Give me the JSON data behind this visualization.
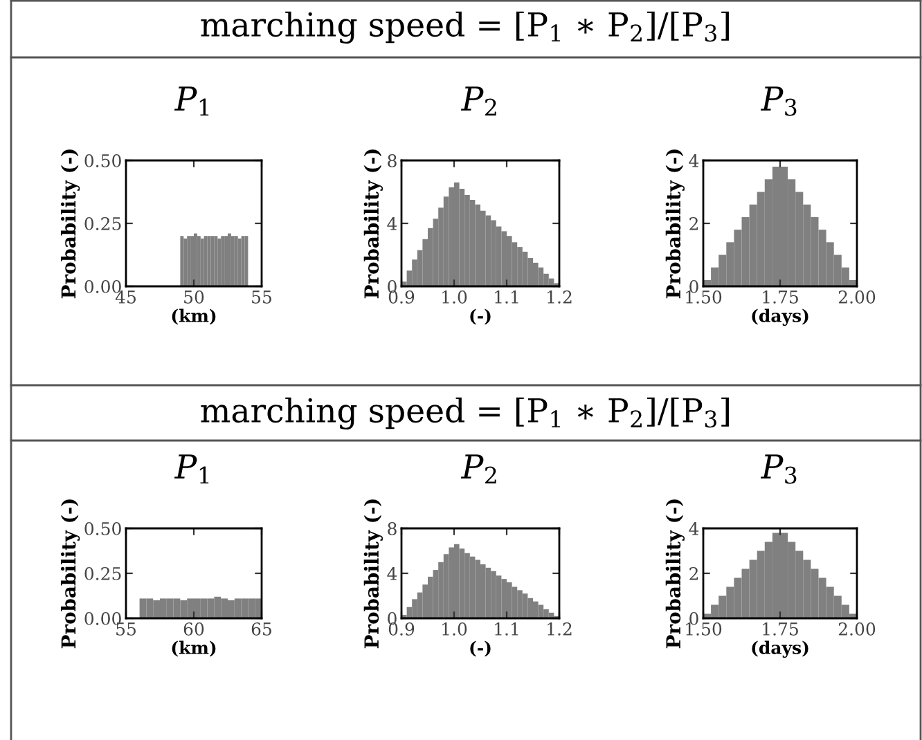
{
  "chart_data": [
    {
      "type": "histogram",
      "title": "P$_{1}$",
      "annotations": [
        "marching speed = [P$_{1}$ ∗ P$_{2}$]/[P$_{3}$]"
      ],
      "xlabel": "(km)",
      "ylabel": "Probability (-)",
      "color": "#808080",
      "bins": [
        49,
        49.25,
        49.5,
        49.75,
        50,
        50.25,
        50.5,
        50.75,
        51,
        51.25,
        51.5,
        51.75,
        52,
        52.25,
        52.5,
        52.75,
        53,
        53.25,
        53.5,
        53.75,
        54
      ],
      "values": [
        0.2,
        0.19,
        0.2,
        0.2,
        0.21,
        0.2,
        0.19,
        0.2,
        0.2,
        0.2,
        0.2,
        0.19,
        0.2,
        0.2,
        0.21,
        0.2,
        0.2,
        0.19,
        0.2,
        0.2
      ],
      "xlim": [
        45,
        55
      ],
      "xticks": [
        45,
        50,
        55
      ],
      "ylim": [
        0,
        0.5
      ],
      "yticks": [
        {
          "value": 0,
          "label": "0.00"
        },
        {
          "value": 0.25,
          "label": "0.25"
        },
        {
          "value": 0.5,
          "label": "0.50"
        }
      ]
    },
    {
      "type": "histogram",
      "title": "P$_{2}$",
      "xlabel": "(-)",
      "ylabel": "Probability (-)",
      "color": "#808080",
      "bins": [
        0.9,
        0.91,
        0.92,
        0.93,
        0.94,
        0.95,
        0.96,
        0.97,
        0.98,
        0.99,
        1.0,
        1.01,
        1.02,
        1.03,
        1.04,
        1.05,
        1.06,
        1.07,
        1.08,
        1.09,
        1.1,
        1.11,
        1.12,
        1.13,
        1.14,
        1.15,
        1.16,
        1.17,
        1.18,
        1.19,
        1.2
      ],
      "values": [
        0.3,
        1.0,
        1.7,
        2.3,
        3.0,
        3.7,
        4.3,
        5.0,
        5.7,
        6.3,
        6.6,
        6.2,
        5.8,
        5.5,
        5.2,
        4.8,
        4.5,
        4.2,
        3.8,
        3.5,
        3.2,
        2.8,
        2.5,
        2.2,
        1.8,
        1.5,
        1.2,
        0.8,
        0.5,
        0.2
      ],
      "xlim": [
        0.9,
        1.2
      ],
      "xticks": [
        0.9,
        {
          "value": 1.0,
          "label": "1.0"
        },
        1.1,
        1.2
      ],
      "ylim": [
        0,
        8
      ],
      "yticks": [
        0,
        4,
        8
      ]
    },
    {
      "type": "histogram",
      "title": "P$_{3}$",
      "xlabel": "(days)",
      "ylabel": "Probability (-)",
      "color": "#808080",
      "bins": [
        1.5,
        1.525,
        1.55,
        1.575,
        1.6,
        1.625,
        1.65,
        1.675,
        1.7,
        1.725,
        1.75,
        1.775,
        1.8,
        1.825,
        1.85,
        1.875,
        1.9,
        1.925,
        1.95,
        1.975,
        2.0
      ],
      "values": [
        0.2,
        0.6,
        1.0,
        1.4,
        1.8,
        2.2,
        2.6,
        3.0,
        3.4,
        3.8,
        3.8,
        3.4,
        3.0,
        2.6,
        2.2,
        1.8,
        1.4,
        1.0,
        0.6,
        0.2
      ],
      "xlim": [
        1.5,
        2.0
      ],
      "xticks": [
        {
          "value": 1.5,
          "label": "1.50"
        },
        {
          "value": 1.75,
          "label": "1.75"
        },
        {
          "value": 2.0,
          "label": "2.00"
        }
      ],
      "ylim": [
        0,
        4
      ],
      "yticks": [
        0,
        2,
        4
      ]
    },
    {
      "type": "histogram",
      "title": "P$_{1}$",
      "annotations": [
        "marching speed = [P$_{1}$ ∗ P$_{2}$]/[P$_{3}$]"
      ],
      "xlabel": "(km)",
      "ylabel": "Probability (-)",
      "color": "#808080",
      "bins": [
        56,
        56.5,
        57,
        57.5,
        58,
        58.5,
        59,
        59.5,
        60,
        60.5,
        61,
        61.5,
        62,
        62.5,
        63,
        63.5,
        64,
        64.5,
        65
      ],
      "values": [
        0.11,
        0.11,
        0.1,
        0.11,
        0.11,
        0.11,
        0.1,
        0.11,
        0.11,
        0.11,
        0.11,
        0.12,
        0.11,
        0.1,
        0.11,
        0.11,
        0.11,
        0.11
      ],
      "xlim": [
        55,
        65
      ],
      "xticks": [
        55,
        60,
        65
      ],
      "ylim": [
        0,
        0.5
      ],
      "yticks": [
        {
          "value": 0,
          "label": "0.00"
        },
        {
          "value": 0.25,
          "label": "0.25"
        },
        {
          "value": 0.5,
          "label": "0.50"
        }
      ]
    },
    {
      "type": "histogram",
      "title": "P$_{2}$",
      "xlabel": "(-)",
      "ylabel": "Probability (-)",
      "color": "#808080",
      "bins": [
        0.9,
        0.91,
        0.92,
        0.93,
        0.94,
        0.95,
        0.96,
        0.97,
        0.98,
        0.99,
        1.0,
        1.01,
        1.02,
        1.03,
        1.04,
        1.05,
        1.06,
        1.07,
        1.08,
        1.09,
        1.1,
        1.11,
        1.12,
        1.13,
        1.14,
        1.15,
        1.16,
        1.17,
        1.18,
        1.19,
        1.2
      ],
      "values": [
        0.3,
        1.0,
        1.7,
        2.3,
        3.0,
        3.7,
        4.3,
        5.0,
        5.7,
        6.3,
        6.6,
        6.2,
        5.8,
        5.5,
        5.2,
        4.8,
        4.5,
        4.2,
        3.8,
        3.5,
        3.2,
        2.8,
        2.5,
        2.2,
        1.8,
        1.5,
        1.2,
        0.8,
        0.5,
        0.2
      ],
      "xlim": [
        0.9,
        1.2
      ],
      "xticks": [
        0.9,
        {
          "value": 1.0,
          "label": "1.0"
        },
        1.1,
        1.2
      ],
      "ylim": [
        0,
        8
      ],
      "yticks": [
        0,
        4,
        8
      ]
    },
    {
      "type": "histogram",
      "title": "P$_{3}$",
      "xlabel": "(days)",
      "ylabel": "Probability (-)",
      "color": "#808080",
      "bins": [
        1.5,
        1.525,
        1.55,
        1.575,
        1.6,
        1.625,
        1.65,
        1.675,
        1.7,
        1.725,
        1.75,
        1.775,
        1.8,
        1.825,
        1.85,
        1.875,
        1.9,
        1.925,
        1.95,
        1.975,
        2.0
      ],
      "values": [
        0.2,
        0.6,
        1.0,
        1.4,
        1.8,
        2.2,
        2.6,
        3.0,
        3.4,
        3.8,
        3.8,
        3.4,
        3.0,
        2.6,
        2.2,
        1.8,
        1.4,
        1.0,
        0.6,
        0.2
      ],
      "xlim": [
        1.5,
        2.0
      ],
      "xticks": [
        {
          "value": 1.5,
          "label": "1.50"
        },
        {
          "value": 1.75,
          "label": "1.75"
        },
        {
          "value": 2.0,
          "label": "2.00"
        }
      ],
      "ylim": [
        0,
        4
      ],
      "yticks": [
        0,
        2,
        4
      ]
    }
  ]
}
